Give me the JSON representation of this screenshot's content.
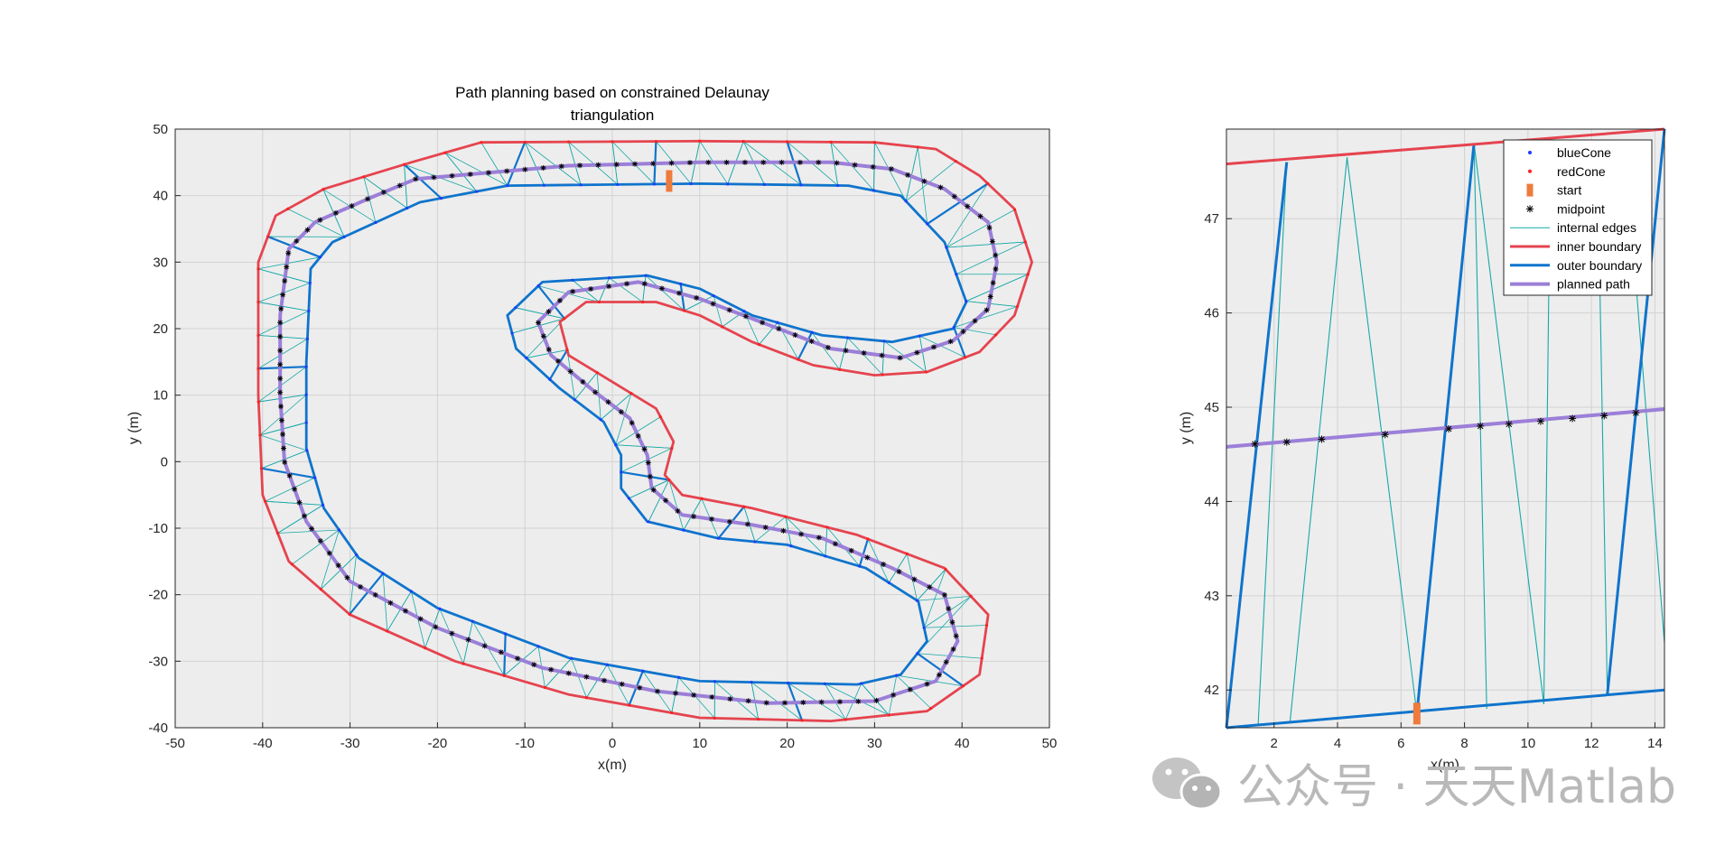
{
  "colors": {
    "blueCone": "#1f3cff",
    "redCone": "#ff2020",
    "inner": "#e5444f",
    "outer": "#0f74cc",
    "internal": "#17a8a8",
    "path": "#9b7fd8",
    "start": "#ee7b3c",
    "axes_bg": "#ededed",
    "grid": "#d2d2d2"
  },
  "chart_data": [
    {
      "type": "line",
      "title_line1": "Path planning based on constrained Delaunay",
      "title_line2": "triangulation",
      "xlabel": "x(m)",
      "ylabel": "y (m)",
      "xlim": [
        -50,
        50
      ],
      "ylim": [
        -40,
        50
      ],
      "xticks": [
        -50,
        -40,
        -30,
        -20,
        -10,
        0,
        10,
        20,
        30,
        40,
        50
      ],
      "yticks": [
        -40,
        -30,
        -20,
        -10,
        0,
        10,
        20,
        30,
        40,
        50
      ],
      "grid": true,
      "series": [
        {
          "name": "inner boundary",
          "points": [
            [
              -15,
              48
            ],
            [
              10,
              48.2
            ],
            [
              30,
              48
            ],
            [
              37,
              47
            ],
            [
              42,
              43
            ],
            [
              46,
              38
            ],
            [
              48,
              30
            ],
            [
              46,
              22
            ],
            [
              42,
              16.5
            ],
            [
              36,
              13.5
            ],
            [
              30,
              13
            ],
            [
              23,
              14.5
            ],
            [
              16,
              18
            ],
            [
              10,
              22
            ],
            [
              5,
              24
            ],
            [
              -3,
              24
            ],
            [
              -6,
              21
            ],
            [
              -5,
              16
            ],
            [
              0,
              12
            ],
            [
              5,
              8
            ],
            [
              7,
              3
            ],
            [
              6,
              -2
            ],
            [
              8,
              -5
            ],
            [
              16,
              -7
            ],
            [
              28,
              -11
            ],
            [
              38,
              -16
            ],
            [
              43,
              -23
            ],
            [
              42,
              -32
            ],
            [
              36,
              -37.5
            ],
            [
              25,
              -39
            ],
            [
              10,
              -38.5
            ],
            [
              -5,
              -35
            ],
            [
              -18,
              -30
            ],
            [
              -30,
              -23
            ],
            [
              -37,
              -15
            ],
            [
              -40,
              -5
            ],
            [
              -40.5,
              10
            ],
            [
              -40.5,
              30
            ],
            [
              -38.5,
              37
            ],
            [
              -33,
              41
            ],
            [
              -23,
              45
            ],
            [
              -15,
              48
            ]
          ]
        },
        {
          "name": "outer boundary",
          "points": [
            [
              -12,
              41.5
            ],
            [
              10,
              41.8
            ],
            [
              27,
              41.5
            ],
            [
              33,
              40
            ],
            [
              38,
              33
            ],
            [
              40.5,
              24
            ],
            [
              39,
              20
            ],
            [
              32,
              18
            ],
            [
              24,
              19
            ],
            [
              16,
              22
            ],
            [
              10,
              26
            ],
            [
              4,
              28
            ],
            [
              -8,
              27
            ],
            [
              -12,
              22
            ],
            [
              -11,
              17
            ],
            [
              -6,
              11
            ],
            [
              -1,
              6
            ],
            [
              1,
              1
            ],
            [
              1,
              -4
            ],
            [
              4,
              -9
            ],
            [
              12,
              -11.5
            ],
            [
              20,
              -12.5
            ],
            [
              29,
              -16
            ],
            [
              35,
              -21
            ],
            [
              36,
              -27
            ],
            [
              33,
              -32
            ],
            [
              28,
              -33.5
            ],
            [
              10,
              -33
            ],
            [
              -5,
              -29.5
            ],
            [
              -20,
              -22
            ],
            [
              -29,
              -14.5
            ],
            [
              -33,
              -7
            ],
            [
              -35,
              2
            ],
            [
              -35,
              15
            ],
            [
              -34.5,
              29
            ],
            [
              -32,
              33
            ],
            [
              -22,
              39
            ],
            [
              -12,
              41.5
            ]
          ]
        },
        {
          "name": "planned path",
          "points": [
            [
              -22.5,
              42.5
            ],
            [
              -5,
              44.5
            ],
            [
              10,
              45
            ],
            [
              25,
              45
            ],
            [
              32,
              44
            ],
            [
              38,
              41
            ],
            [
              43,
              36
            ],
            [
              44,
              30
            ],
            [
              43,
              23
            ],
            [
              39,
              18.2
            ],
            [
              33,
              15.6
            ],
            [
              25,
              17
            ],
            [
              18,
              20.5
            ],
            [
              10,
              24.5
            ],
            [
              3,
              27
            ],
            [
              -5,
              25.5
            ],
            [
              -8.5,
              21
            ],
            [
              -7,
              16
            ],
            [
              -2,
              10.5
            ],
            [
              2,
              6.5
            ],
            [
              4,
              1
            ],
            [
              4.5,
              -4
            ],
            [
              8,
              -8
            ],
            [
              16,
              -9.5
            ],
            [
              24,
              -11.5
            ],
            [
              32,
              -16
            ],
            [
              38,
              -20
            ],
            [
              39.5,
              -27
            ],
            [
              37,
              -33
            ],
            [
              30,
              -36
            ],
            [
              18,
              -36.3
            ],
            [
              5,
              -34.5
            ],
            [
              -8,
              -31
            ],
            [
              -20,
              -25
            ],
            [
              -30,
              -18
            ],
            [
              -35,
              -9
            ],
            [
              -37.5,
              0
            ],
            [
              -38,
              10
            ],
            [
              -38,
              22
            ],
            [
              -37,
              32
            ],
            [
              -34,
              36
            ],
            [
              -28,
              39.5
            ],
            [
              -22.5,
              42.5
            ]
          ]
        }
      ],
      "start_marker": {
        "x": 6.5,
        "y": 42.2
      }
    },
    {
      "type": "line",
      "xlabel": "x(m)",
      "ylabel": "y (m)",
      "xlim": [
        0.5,
        14.3
      ],
      "ylim": [
        41.6,
        47.95
      ],
      "xticks": [
        2,
        4,
        6,
        8,
        10,
        12,
        14
      ],
      "yticks": [
        42,
        43,
        44,
        45,
        46,
        47
      ],
      "grid": true,
      "series": [
        {
          "name": "inner boundary",
          "points": [
            [
              0.5,
              47.58
            ],
            [
              14.3,
              47.95
            ]
          ]
        },
        {
          "name": "outer boundary",
          "points": [
            [
              0.5,
              41.6
            ],
            [
              14.3,
              42.0
            ]
          ]
        },
        {
          "name": "planned path",
          "points": [
            [
              0.5,
              44.58
            ],
            [
              14.3,
              44.98
            ]
          ]
        }
      ],
      "outer_edges": [
        [
          [
            0.5,
            41.6
          ],
          [
            2.4,
            47.6
          ]
        ],
        [
          [
            6.5,
            41.75
          ],
          [
            8.3,
            47.8
          ]
        ],
        [
          [
            12.5,
            41.95
          ],
          [
            14.3,
            47.95
          ]
        ]
      ],
      "internal_edges": [
        [
          [
            1.5,
            41.64
          ],
          [
            2.4,
            47.6
          ]
        ],
        [
          [
            2.5,
            41.65
          ],
          [
            4.3,
            47.65
          ]
        ],
        [
          [
            6.5,
            41.75
          ],
          [
            4.3,
            47.65
          ]
        ],
        [
          [
            8.3,
            47.8
          ],
          [
            8.7,
            41.8
          ]
        ],
        [
          [
            8.3,
            47.8
          ],
          [
            10.5,
            41.85
          ]
        ],
        [
          [
            10.5,
            41.85
          ],
          [
            10.7,
            47.5
          ]
        ],
        [
          [
            12.5,
            41.95
          ],
          [
            12.2,
            47.5
          ]
        ],
        [
          [
            13.1,
            47.6
          ],
          [
            14.3,
            42.5
          ]
        ]
      ],
      "midpoints": [
        [
          1.4,
          44.61
        ],
        [
          2.4,
          44.63
        ],
        [
          3.5,
          44.66
        ],
        [
          5.5,
          44.71
        ],
        [
          7.5,
          44.77
        ],
        [
          8.5,
          44.8
        ],
        [
          9.4,
          44.82
        ],
        [
          10.4,
          44.85
        ],
        [
          11.4,
          44.88
        ],
        [
          12.4,
          44.91
        ],
        [
          13.4,
          44.94
        ]
      ],
      "start_marker": {
        "x": 6.5,
        "y": 41.75
      },
      "legend": {
        "placement": "top-right",
        "entries": [
          "blueCone",
          "redCone",
          "start",
          "midpoint",
          "internal edges",
          "inner boundary",
          "outer boundary",
          "planned path"
        ]
      }
    }
  ],
  "watermark": "公众号 · 天天Matlab"
}
